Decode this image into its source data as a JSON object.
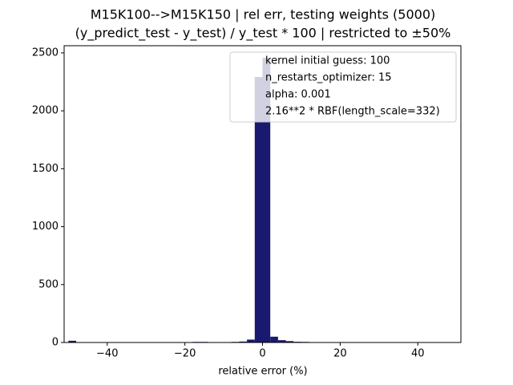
{
  "chart_data": {
    "type": "histogram",
    "title": "M15K100-->M15K150 | rel err, testing weights (5000)",
    "subtitle": "(y_predict_test - y_test) / y_test * 100 | restricted to ±50%",
    "x_label": "relative error (%)",
    "color": "#191970",
    "bins": [
      -50,
      -48,
      -46,
      -44,
      -42,
      -40,
      -38,
      -36,
      -34,
      -32,
      -30,
      -28,
      -26,
      -24,
      -22,
      -20,
      -18,
      -16,
      -14,
      -12,
      -10,
      -8,
      -6,
      -4,
      -2,
      0,
      2,
      4,
      6,
      8,
      10,
      12,
      14,
      16,
      18,
      20,
      22,
      24,
      26,
      28,
      30,
      32,
      34,
      36,
      38,
      40,
      42,
      44,
      46,
      48,
      50
    ],
    "values": [
      15,
      0,
      0,
      0,
      0,
      0,
      0,
      0,
      0,
      0,
      0,
      0,
      0,
      0,
      0,
      0,
      5,
      5,
      1,
      0,
      3,
      5,
      8,
      25,
      2292,
      2458,
      50,
      20,
      12,
      6,
      5,
      0,
      0,
      0,
      0,
      0,
      0,
      0,
      0,
      0,
      0,
      0,
      0,
      0,
      0,
      0,
      0,
      0,
      0,
      0
    ],
    "xlim": [
      -51.1,
      51.1
    ],
    "ylim": [
      0,
      2562
    ],
    "xticks": [
      {
        "value": -40,
        "label": "−40"
      },
      {
        "value": -20,
        "label": "−20"
      },
      0,
      20,
      40
    ],
    "yticks": [
      0,
      500,
      1000,
      1500,
      2000,
      2500
    ],
    "legend_entries": [
      "kernel initial guess: 100",
      "n_restarts_optimizer: 15",
      "alpha: 0.001",
      "2.16**2 * RBF(length_scale=332)"
    ],
    "legend_position": "upper right"
  }
}
